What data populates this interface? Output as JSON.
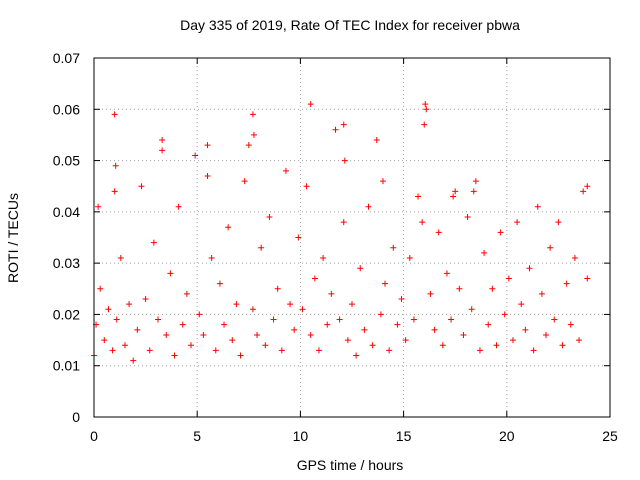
{
  "chart_data": {
    "type": "scatter",
    "title": "Day 335 of 2019, Rate Of TEC Index for receiver pbwa",
    "xlabel": "GPS time / hours",
    "ylabel": "ROTI / TECUs",
    "xlim": [
      0,
      25
    ],
    "ylim": [
      0,
      0.07
    ],
    "xticks": [
      0,
      5,
      10,
      15,
      20,
      25
    ],
    "xtick_labels": [
      "0",
      "5",
      "10",
      "15",
      "20",
      "25"
    ],
    "yticks": [
      0,
      0.01,
      0.02,
      0.03,
      0.04,
      0.05,
      0.06,
      0.07
    ],
    "ytick_labels": [
      "0",
      "0.01",
      "0.02",
      "0.03",
      "0.04",
      "0.05",
      "0.06",
      "0.07"
    ],
    "grid": true,
    "marker": "plus",
    "color": "#ff0000",
    "series": [
      {
        "name": "ROTI",
        "x": [
          0.0,
          0.1,
          0.2,
          0.3,
          0.5,
          0.7,
          0.9,
          1.0,
          1.1,
          1.3,
          1.5,
          1.7,
          1.9,
          2.1,
          2.3,
          2.5,
          2.7,
          2.9,
          3.1,
          3.3,
          3.5,
          3.7,
          3.9,
          4.1,
          4.3,
          4.5,
          4.7,
          4.9,
          5.1,
          5.3,
          5.5,
          5.7,
          5.9,
          6.1,
          6.3,
          6.5,
          6.7,
          6.9,
          7.1,
          7.3,
          7.5,
          7.7,
          7.9,
          8.1,
          8.3,
          8.5,
          8.7,
          8.9,
          9.1,
          9.3,
          9.5,
          9.7,
          9.9,
          10.1,
          10.3,
          10.5,
          10.7,
          10.9,
          11.1,
          11.3,
          11.5,
          11.7,
          11.9,
          12.1,
          12.3,
          12.5,
          12.7,
          12.9,
          13.1,
          13.3,
          13.5,
          13.7,
          13.9,
          14.1,
          14.3,
          14.5,
          14.7,
          14.9,
          15.1,
          15.3,
          15.5,
          15.7,
          15.9,
          16.1,
          16.3,
          16.5,
          16.7,
          16.9,
          17.1,
          17.3,
          17.5,
          17.7,
          17.9,
          18.1,
          18.3,
          18.5,
          18.7,
          18.9,
          19.1,
          19.3,
          19.5,
          19.7,
          19.9,
          20.1,
          20.3,
          20.5,
          20.7,
          20.9,
          21.1,
          21.3,
          21.5,
          21.7,
          21.9,
          22.1,
          22.3,
          22.5,
          22.7,
          22.9,
          23.1,
          23.3,
          23.5,
          23.7,
          23.9,
          1.0,
          1.05,
          3.3,
          5.5,
          7.7,
          7.75,
          10.5,
          12.1,
          12.15,
          14.0,
          16.0,
          16.05,
          17.4,
          18.4,
          23.9
        ],
        "y": [
          0.012,
          0.018,
          0.041,
          0.025,
          0.015,
          0.021,
          0.013,
          0.044,
          0.019,
          0.031,
          0.014,
          0.022,
          0.011,
          0.017,
          0.045,
          0.023,
          0.013,
          0.034,
          0.019,
          0.054,
          0.016,
          0.028,
          0.012,
          0.041,
          0.018,
          0.024,
          0.014,
          0.051,
          0.02,
          0.016,
          0.047,
          0.031,
          0.013,
          0.026,
          0.018,
          0.037,
          0.015,
          0.022,
          0.012,
          0.046,
          0.053,
          0.021,
          0.016,
          0.033,
          0.014,
          0.039,
          0.019,
          0.025,
          0.013,
          0.048,
          0.022,
          0.017,
          0.035,
          0.021,
          0.045,
          0.016,
          0.027,
          0.013,
          0.031,
          0.018,
          0.024,
          0.056,
          0.019,
          0.038,
          0.015,
          0.022,
          0.012,
          0.029,
          0.017,
          0.041,
          0.014,
          0.054,
          0.02,
          0.026,
          0.013,
          0.033,
          0.018,
          0.023,
          0.015,
          0.031,
          0.019,
          0.043,
          0.038,
          0.06,
          0.024,
          0.017,
          0.036,
          0.014,
          0.028,
          0.019,
          0.044,
          0.025,
          0.016,
          0.039,
          0.021,
          0.046,
          0.013,
          0.032,
          0.018,
          0.025,
          0.014,
          0.036,
          0.02,
          0.027,
          0.015,
          0.038,
          0.022,
          0.017,
          0.029,
          0.013,
          0.041,
          0.024,
          0.016,
          0.033,
          0.019,
          0.038,
          0.014,
          0.026,
          0.018,
          0.031,
          0.015,
          0.044,
          0.027,
          0.059,
          0.049,
          0.052,
          0.053,
          0.059,
          0.055,
          0.061,
          0.057,
          0.05,
          0.046,
          0.057,
          0.061,
          0.043,
          0.044,
          0.045
        ]
      }
    ]
  }
}
